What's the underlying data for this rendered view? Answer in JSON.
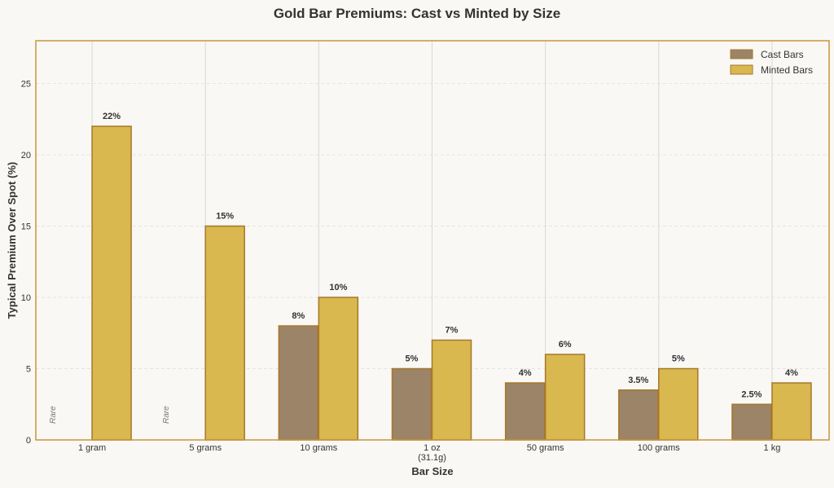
{
  "chart_data": {
    "type": "bar",
    "title": "Gold Bar Premiums: Cast vs Minted by Size",
    "xlabel": "Bar Size",
    "ylabel": "Typical Premium Over Spot (%)",
    "ylim": [
      0,
      28
    ],
    "yticks": [
      0,
      5,
      10,
      15,
      20,
      25
    ],
    "grid": true,
    "legend_position": "top-right",
    "categories": [
      "1 gram",
      "5 grams",
      "10 grams",
      "1 oz\n(31.1g)",
      "50 grams",
      "100 grams",
      "1 kg"
    ],
    "series": [
      {
        "name": "Cast Bars",
        "color": "#9c8468",
        "values": [
          null,
          null,
          8,
          5,
          4,
          3.5,
          2.5
        ],
        "labels": [
          "Rare",
          "Rare",
          "8%",
          "5%",
          "4%",
          "3.5%",
          "2.5%"
        ]
      },
      {
        "name": "Minted Bars",
        "color": "#d9b84f",
        "values": [
          22,
          15,
          10,
          7,
          6,
          5,
          4
        ],
        "labels": [
          "22%",
          "15%",
          "10%",
          "7%",
          "6%",
          "5%",
          "4%"
        ]
      }
    ],
    "edge_color": "#a8772a",
    "frame_color": "#c8953c"
  }
}
